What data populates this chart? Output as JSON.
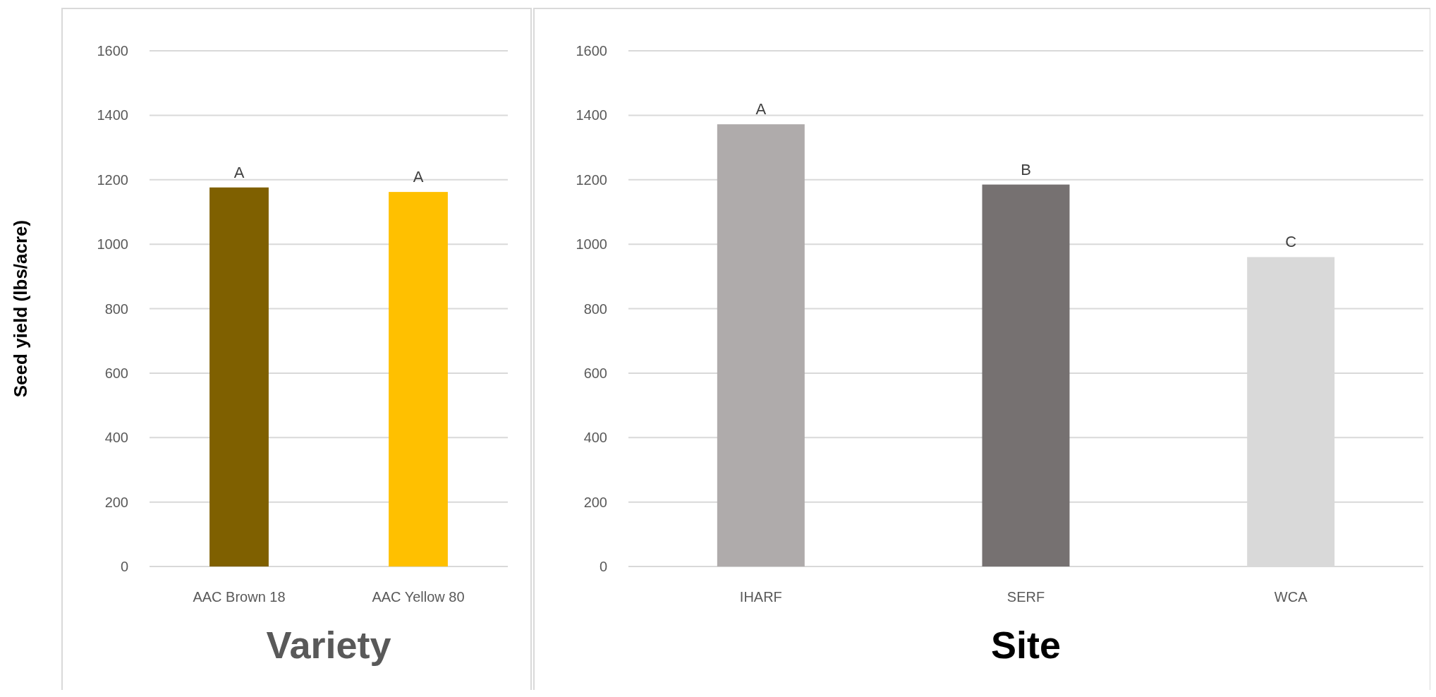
{
  "chart_data": [
    {
      "type": "bar",
      "xlabel": "Variety",
      "ylabel": "Seed yield (lbs/acre)",
      "categories": [
        "AAC Brown 18",
        "AAC Yellow 80"
      ],
      "values": [
        1176,
        1162
      ],
      "colors": [
        "#7f6000",
        "#ffc000"
      ],
      "ylim": [
        0,
        1600
      ],
      "yticks": [
        0,
        200,
        400,
        600,
        800,
        1000,
        1200,
        1400,
        1600
      ],
      "grid": "y",
      "annotations": [
        {
          "text": "A",
          "x": "AAC Brown 18",
          "y": 1176
        },
        {
          "text": "A",
          "x": "AAC Yellow 80",
          "y": 1162
        }
      ]
    },
    {
      "type": "bar",
      "xlabel": "Site",
      "categories": [
        "IHARF",
        "SERF",
        "WCA"
      ],
      "values": [
        1372,
        1185,
        960
      ],
      "colors": [
        "#afabab",
        "#767171",
        "#d9d9d9"
      ],
      "ylim": [
        0,
        1600
      ],
      "yticks": [
        0,
        200,
        400,
        600,
        800,
        1000,
        1200,
        1400,
        1600
      ],
      "grid": "y",
      "annotations": [
        {
          "text": "A",
          "x": "IHARF",
          "y": 1372
        },
        {
          "text": "B",
          "x": "SERF",
          "y": 1185
        },
        {
          "text": "C",
          "x": "WCA",
          "y": 960
        }
      ]
    }
  ]
}
